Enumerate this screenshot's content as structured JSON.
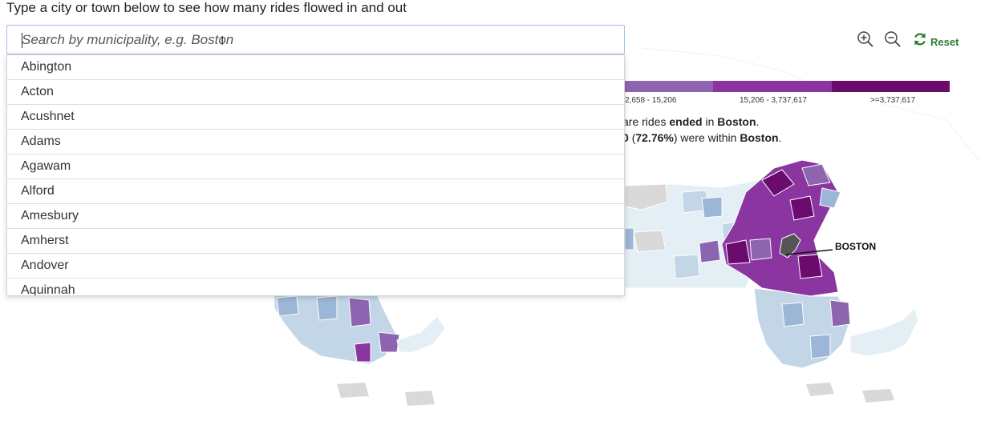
{
  "prompt": "Type a city or town below to see how many rides flowed in and out",
  "search": {
    "placeholder": "Search by municipality, e.g. Boston",
    "value": ""
  },
  "dropdown": {
    "items": [
      "Abington",
      "Acton",
      "Acushnet",
      "Adams",
      "Agawam",
      "Alford",
      "Amesbury",
      "Amherst",
      "Andover",
      "Aquinnah"
    ]
  },
  "controls": {
    "zoom_in": "zoom-in-icon",
    "zoom_out": "zoom-out-icon",
    "reset_label": "Reset",
    "reset_icon": "refresh-icon"
  },
  "legend": {
    "segments": [
      {
        "color": "#8c64b0",
        "label": "2,658 - 15,206"
      },
      {
        "color": "#8b35a0",
        "label": "15,206 - 3,737,617"
      },
      {
        "color": "#6b0b6e",
        "label": ">=3,737,617"
      }
    ]
  },
  "summary": {
    "line1_pre": "are rides",
    "line1_bold1": "ended",
    "line1_mid": "in",
    "line1_city": "Boston",
    "line1_end": ".",
    "line2_pre": "0",
    "line2_pct": "(72.76%)",
    "line2_mid": "were within",
    "line2_city": "Boston",
    "line2_end": "."
  },
  "map": {
    "highlight_label": "BOSTON",
    "colors": {
      "gray": "#d9d9d9",
      "c1": "#e3eef5",
      "c2": "#c2d6e8",
      "c3": "#9bb6d6",
      "c4": "#8c64b0",
      "c5": "#8b35a0",
      "c6": "#6b0b6e",
      "selected": "#555555"
    }
  }
}
